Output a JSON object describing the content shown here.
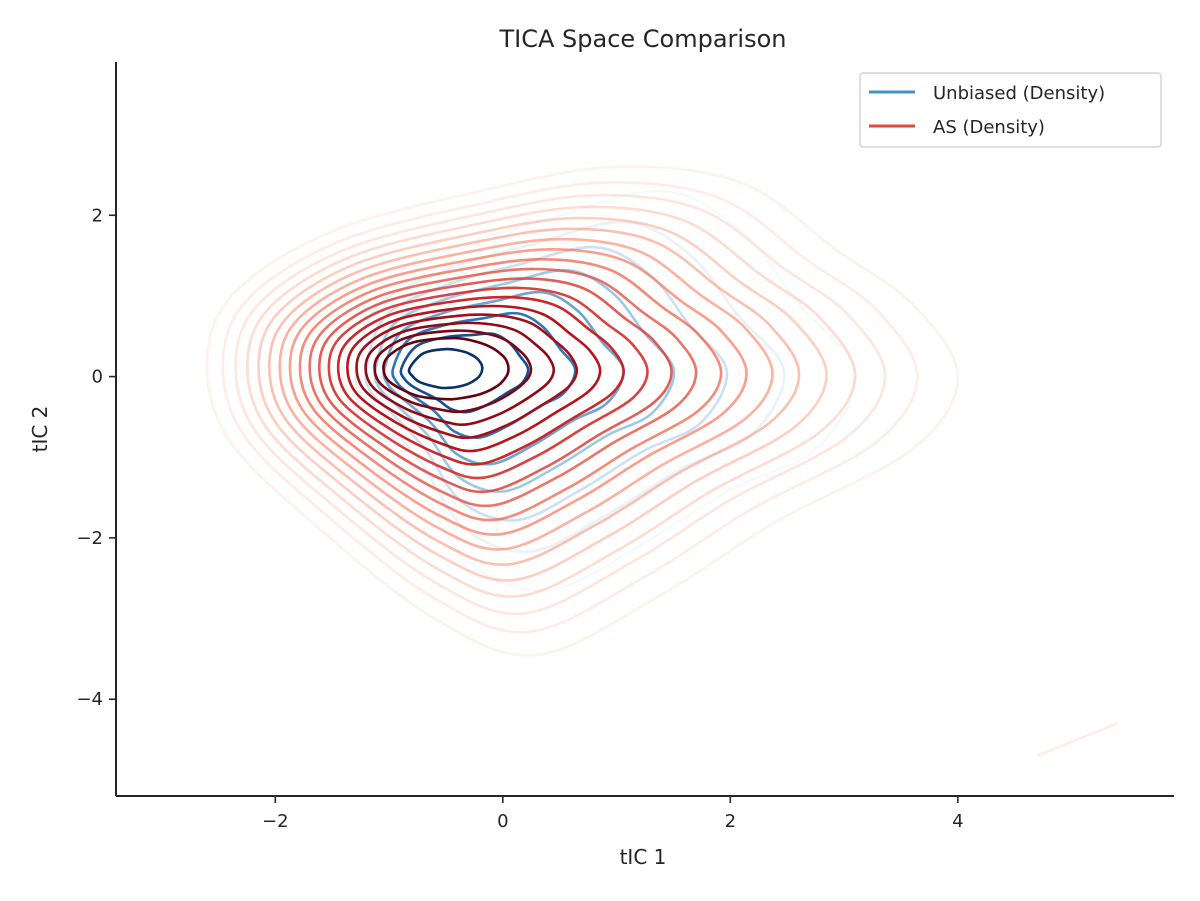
{
  "chart_data": {
    "type": "contour",
    "title": "TICA Space Comparison",
    "xlabel": "tIC 1",
    "ylabel": "tIC 2",
    "xlim": [
      -3.4,
      5.9
    ],
    "ylim": [
      -5.2,
      3.9
    ],
    "xticks": [
      -2,
      0,
      2,
      4
    ],
    "yticks": [
      -4,
      -2,
      0,
      2
    ],
    "xtick_labels": [
      "−2",
      "0",
      "2",
      "4"
    ],
    "ytick_labels": [
      "−4",
      "−2",
      "0",
      "2"
    ],
    "grid": false,
    "legend_position": "top-right",
    "series": [
      {
        "name": "Unbiased (Density)",
        "color": "#4292c6",
        "colormap": "Blues",
        "peak": [
          -0.5,
          0.1
        ],
        "levels": 8,
        "extent_x": [
          -1.4,
          3.1
        ],
        "extent_y": [
          -2.6,
          2.3
        ]
      },
      {
        "name": "AS (Density)",
        "color": "#e34a33",
        "colormap": "Reds",
        "peak": [
          -0.5,
          0.1
        ],
        "levels": 18,
        "extent_x": [
          -2.6,
          4.0
        ],
        "extent_y": [
          -3.5,
          2.6
        ]
      }
    ]
  }
}
